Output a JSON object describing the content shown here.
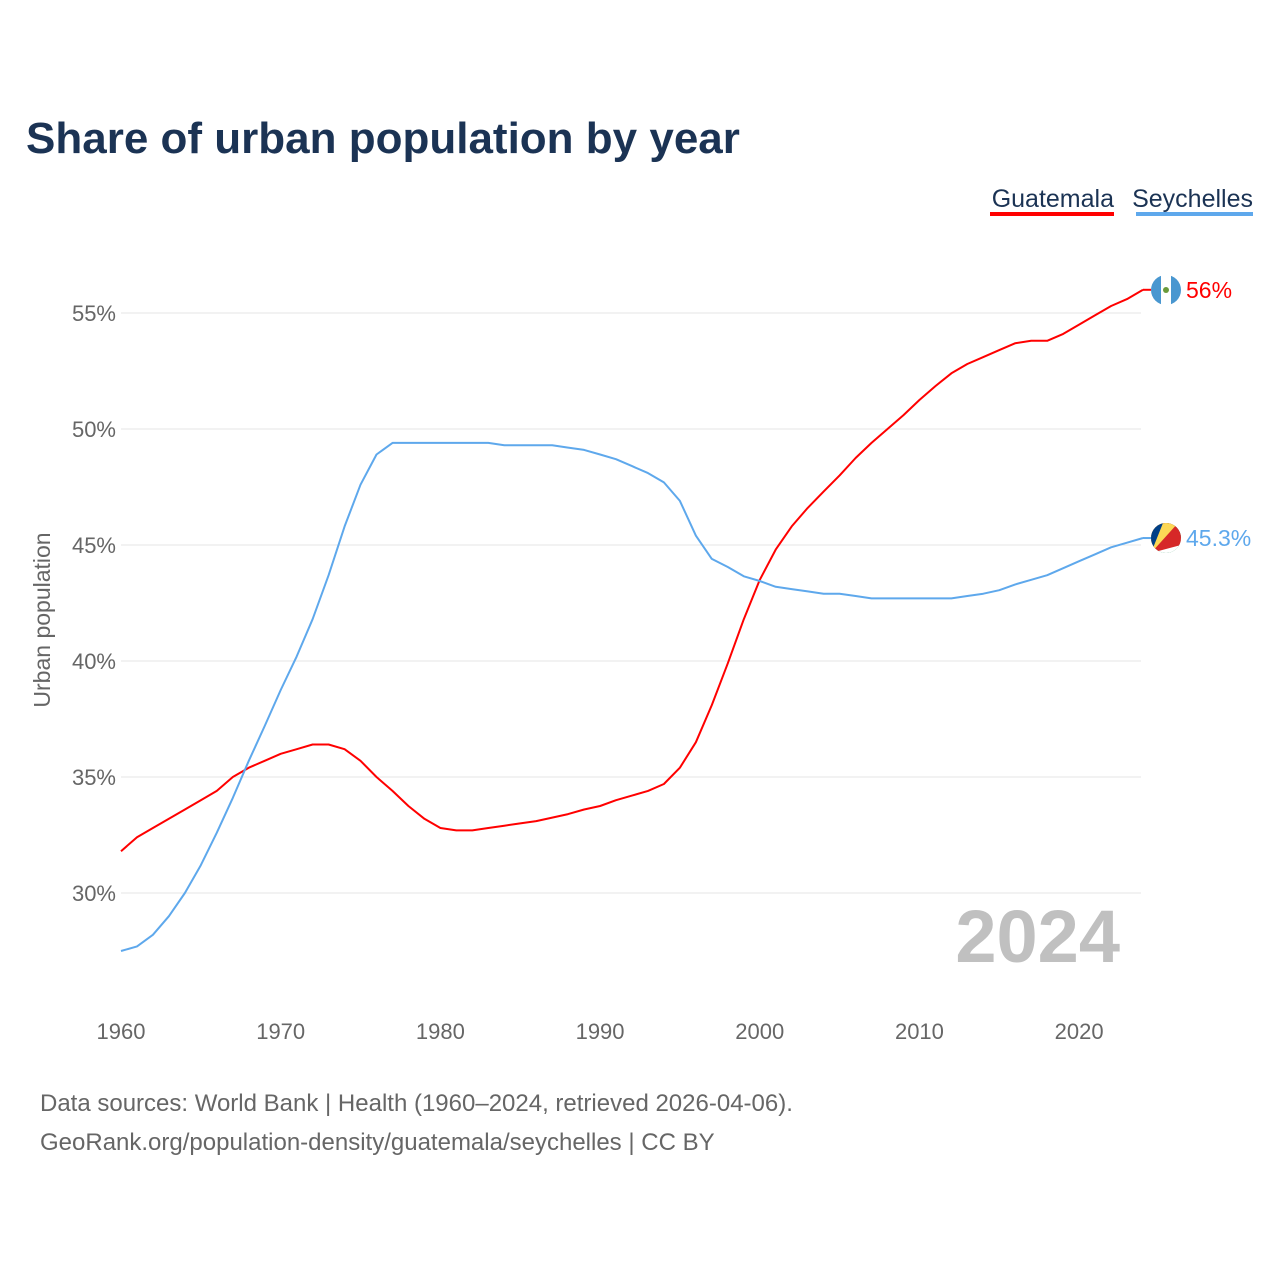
{
  "chart_data": {
    "type": "line",
    "title": "Share of urban population by year",
    "xlabel": "",
    "ylabel": "Urban population",
    "xlim": [
      1960,
      2024
    ],
    "ylim": [
      25,
      56.5
    ],
    "grid": true,
    "legend_placement": "top-right",
    "x_ticks": [
      "1960",
      "1970",
      "1980",
      "1990",
      "2000",
      "2010",
      "2020"
    ],
    "y_ticks": [
      {
        "value": 30,
        "label": "30%"
      },
      {
        "value": 35,
        "label": "35%"
      },
      {
        "value": 40,
        "label": "40%"
      },
      {
        "value": 45,
        "label": "45%"
      },
      {
        "value": 50,
        "label": "50%"
      },
      {
        "value": 55,
        "label": "55%"
      }
    ],
    "year_watermark": "2024",
    "x": [
      1960,
      1961,
      1962,
      1963,
      1964,
      1965,
      1966,
      1967,
      1968,
      1969,
      1970,
      1971,
      1972,
      1973,
      1974,
      1975,
      1976,
      1977,
      1978,
      1979,
      1980,
      1981,
      1982,
      1983,
      1984,
      1985,
      1986,
      1987,
      1988,
      1989,
      1990,
      1991,
      1992,
      1993,
      1994,
      1995,
      1996,
      1997,
      1998,
      1999,
      2000,
      2001,
      2002,
      2003,
      2004,
      2005,
      2006,
      2007,
      2008,
      2009,
      2010,
      2011,
      2012,
      2013,
      2014,
      2015,
      2016,
      2017,
      2018,
      2019,
      2020,
      2021,
      2022,
      2023,
      2024
    ],
    "series": [
      {
        "name": "Guatemala",
        "color": "#ff0000",
        "end_label": "56%",
        "values": [
          31.8,
          32.4,
          32.8,
          33.2,
          33.6,
          34.0,
          34.4,
          35.0,
          35.4,
          35.7,
          36.0,
          36.2,
          36.4,
          36.4,
          36.2,
          35.7,
          35.0,
          34.4,
          33.75,
          33.2,
          32.8,
          32.7,
          32.7,
          32.8,
          32.9,
          33.0,
          33.1,
          33.25,
          33.4,
          33.6,
          33.75,
          34.0,
          34.2,
          34.4,
          34.7,
          35.4,
          36.5,
          38.1,
          39.9,
          41.8,
          43.5,
          44.8,
          45.8,
          46.6,
          47.3,
          48.0,
          48.75,
          49.4,
          50.0,
          50.6,
          51.25,
          51.85,
          52.4,
          52.8,
          53.1,
          53.4,
          53.7,
          53.8,
          53.8,
          54.1,
          54.5,
          54.9,
          55.3,
          55.6,
          56.0
        ]
      },
      {
        "name": "Seychelles",
        "color": "#5ea8ec",
        "end_label": "45.3%",
        "values": [
          27.5,
          27.7,
          28.2,
          29.0,
          30.0,
          31.2,
          32.6,
          34.1,
          35.7,
          37.2,
          38.75,
          40.2,
          41.8,
          43.7,
          45.8,
          47.6,
          48.9,
          49.4,
          49.4,
          49.4,
          49.4,
          49.4,
          49.4,
          49.4,
          49.3,
          49.3,
          49.3,
          49.3,
          49.2,
          49.1,
          48.9,
          48.7,
          48.4,
          48.1,
          47.7,
          46.9,
          45.4,
          44.4,
          44.05,
          43.65,
          43.45,
          43.2,
          43.1,
          43.0,
          42.9,
          42.9,
          42.8,
          42.7,
          42.7,
          42.7,
          42.7,
          42.7,
          42.7,
          42.8,
          42.9,
          43.05,
          43.3,
          43.5,
          43.7,
          44.0,
          44.3,
          44.6,
          44.9,
          45.1,
          45.3
        ]
      }
    ]
  },
  "footer": {
    "line1": "Data sources: World Bank | Health (1960–2024, retrieved 2026-04-06).",
    "line2": "GeoRank.org/population-density/guatemala/seychelles | CC BY"
  }
}
